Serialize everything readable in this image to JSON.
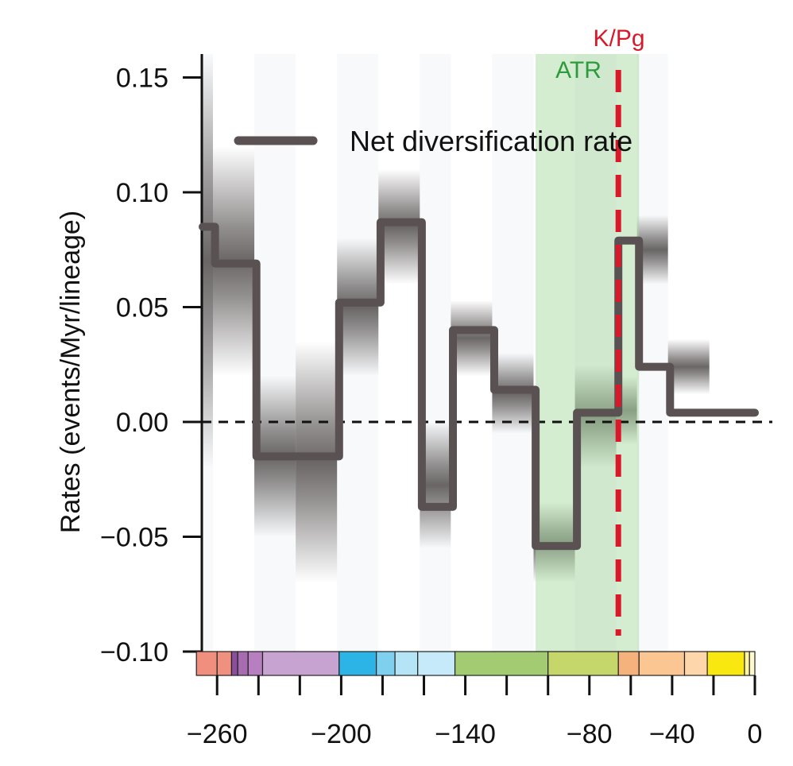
{
  "chart_data": {
    "type": "line",
    "title": "",
    "xlabel": "",
    "ylabel": "Rates (events/Myr/lineage)",
    "xlim": [
      -270,
      0
    ],
    "ylim": [
      -0.1,
      0.15
    ],
    "x_ticks": [
      -260,
      -240,
      -220,
      -200,
      -180,
      -160,
      -140,
      -120,
      -100,
      -80,
      -60,
      -40,
      -20,
      0
    ],
    "x_tick_labels": [
      {
        "value": -260,
        "label": "−260"
      },
      {
        "value": -200,
        "label": "−200"
      },
      {
        "value": -140,
        "label": "−140"
      },
      {
        "value": -80,
        "label": "−80"
      },
      {
        "value": -40,
        "label": "−40"
      },
      {
        "value": 0,
        "label": "0"
      }
    ],
    "y_ticks": [
      {
        "value": 0.15,
        "label": "0.15"
      },
      {
        "value": 0.1,
        "label": "0.10"
      },
      {
        "value": 0.05,
        "label": "0.05"
      },
      {
        "value": 0.0,
        "label": "0.00"
      },
      {
        "value": -0.05,
        "label": "−0.05"
      },
      {
        "value": -0.1,
        "label": "−0.10"
      }
    ],
    "grid": false,
    "legend": {
      "placement": "top",
      "entries": [
        {
          "name": "Net diversification rate",
          "color": "#5a5252"
        }
      ]
    },
    "series": [
      {
        "name": "Net diversification rate",
        "color": "#5a5252",
        "step_x": [
          -267,
          -261,
          -261,
          -241,
          -241,
          -201,
          -201,
          -181,
          -181,
          -161,
          -161,
          -146,
          -146,
          -126,
          -126,
          -106,
          -106,
          -86,
          -86,
          -66,
          -66,
          -56,
          -56,
          -41,
          -41,
          -21,
          -21,
          0
        ],
        "step_y": [
          0.085,
          0.085,
          0.069,
          0.069,
          -0.015,
          -0.015,
          0.052,
          0.052,
          0.087,
          0.087,
          -0.037,
          -0.037,
          0.04,
          0.04,
          0.014,
          0.014,
          -0.054,
          -0.054,
          0.004,
          0.004,
          0.079,
          0.079,
          0.024,
          0.024,
          0.004,
          0.004,
          0.004,
          0.004
        ],
        "uncertainty_segments": [
          {
            "x0": -268,
            "x1": -262,
            "lo": -0.02,
            "hi": 0.16
          },
          {
            "x0": -262,
            "x1": -242,
            "lo": 0.02,
            "hi": 0.12
          },
          {
            "x0": -242,
            "x1": -222,
            "lo": -0.05,
            "hi": 0.02
          },
          {
            "x0": -222,
            "x1": -202,
            "lo": -0.07,
            "hi": 0.035
          },
          {
            "x0": -202,
            "x1": -182,
            "lo": 0.02,
            "hi": 0.08
          },
          {
            "x0": -182,
            "x1": -162,
            "lo": 0.06,
            "hi": 0.11
          },
          {
            "x0": -162,
            "x1": -147,
            "lo": -0.055,
            "hi": 0.0
          },
          {
            "x0": -147,
            "x1": -127,
            "lo": 0.02,
            "hi": 0.053
          },
          {
            "x0": -127,
            "x1": -107,
            "lo": -0.005,
            "hi": 0.03
          },
          {
            "x0": -107,
            "x1": -87,
            "lo": -0.07,
            "hi": -0.035
          },
          {
            "x0": -87,
            "x1": -67,
            "lo": -0.02,
            "hi": 0.025
          },
          {
            "x0": -67,
            "x1": -57,
            "lo": -0.01,
            "hi": 0.02
          },
          {
            "x0": -57,
            "x1": -42,
            "lo": 0.06,
            "hi": 0.09
          },
          {
            "x0": -42,
            "x1": -22,
            "lo": 0.012,
            "hi": 0.036
          }
        ]
      }
    ],
    "baseline": {
      "y": 0.0,
      "style": "dashed",
      "color": "#111111"
    },
    "annotations": [
      {
        "label": "ATR",
        "type": "band",
        "x0": -106,
        "x1": -56,
        "color": "#a9d9a2"
      },
      {
        "label": "K/Pg",
        "type": "vline",
        "x": -66,
        "color": "#d9192a"
      }
    ],
    "timescale_bar": [
      {
        "x0": -270,
        "x1": -260,
        "color": "#f08f7e"
      },
      {
        "x0": -260,
        "x1": -253,
        "color": "#f0907f"
      },
      {
        "x0": -253,
        "x1": -250,
        "color": "#8a4f9c"
      },
      {
        "x0": -250,
        "x1": -245,
        "color": "#a76cb0"
      },
      {
        "x0": -245,
        "x1": -238,
        "color": "#b77fbf"
      },
      {
        "x0": -238,
        "x1": -201,
        "color": "#c7a3d1"
      },
      {
        "x0": -201,
        "x1": -183,
        "color": "#2db4e6"
      },
      {
        "x0": -183,
        "x1": -174,
        "color": "#7fd0ee"
      },
      {
        "x0": -174,
        "x1": -163,
        "color": "#b6e4f7"
      },
      {
        "x0": -163,
        "x1": -145,
        "color": "#c7eafb"
      },
      {
        "x0": -145,
        "x1": -100,
        "color": "#a3cc72"
      },
      {
        "x0": -100,
        "x1": -66,
        "color": "#c5d66a"
      },
      {
        "x0": -66,
        "x1": -56,
        "color": "#f6b27c"
      },
      {
        "x0": -56,
        "x1": -34,
        "color": "#fcc693"
      },
      {
        "x0": -34,
        "x1": -23,
        "color": "#fdd7ab"
      },
      {
        "x0": -23,
        "x1": -5,
        "color": "#f8e80f"
      },
      {
        "x0": -5,
        "x1": -2.6,
        "color": "#fff5a0"
      },
      {
        "x0": -2.6,
        "x1": 0,
        "color": "#fff9d0"
      }
    ]
  }
}
